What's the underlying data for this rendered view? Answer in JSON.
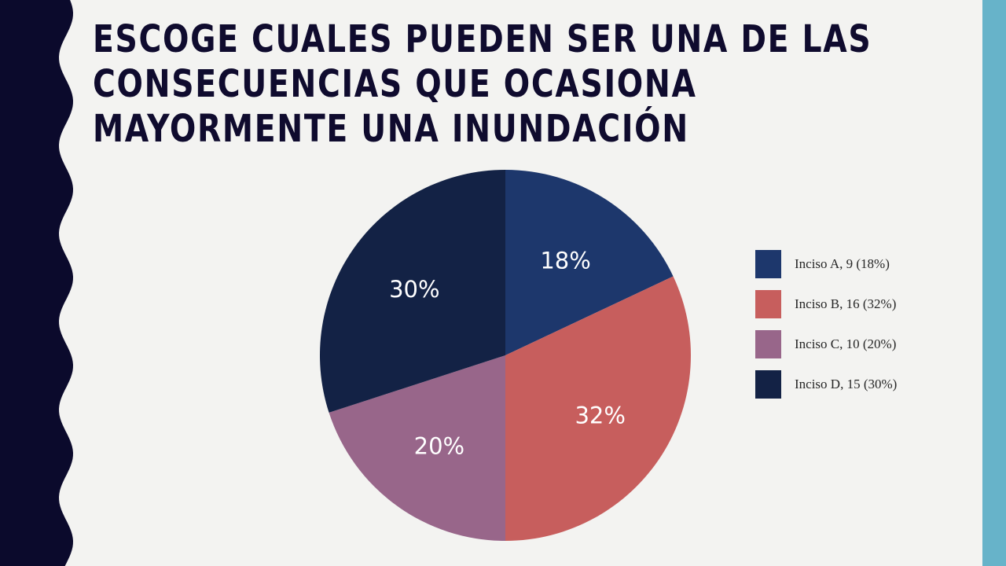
{
  "title_lines": [
    "ESCOGE CUALES PUEDEN SER UNA DE LAS",
    "CONSECUENCIAS QUE OCASIONA",
    "MAYORMENTE UNA INUNDACIÓN"
  ],
  "theme": {
    "background": "#f3f3f1",
    "left_band": "#0b0a2c",
    "right_band": "#67b3c9",
    "title_color": "#0f0b2e"
  },
  "chart_data": {
    "type": "pie",
    "title": "",
    "legend_position": "right",
    "slices": [
      {
        "category": "Inciso A",
        "value": 9,
        "percent_label": "18%",
        "legend": "Inciso A, 9 (18%)",
        "color": "#1d376c"
      },
      {
        "category": "Inciso B",
        "value": 16,
        "percent_label": "32%",
        "legend": "Inciso B, 16 (32%)",
        "color": "#c75e5d"
      },
      {
        "category": "Inciso C",
        "value": 10,
        "percent_label": "20%",
        "legend": "Inciso C, 10 (20%)",
        "color": "#98668a"
      },
      {
        "category": "Inciso D",
        "value": 15,
        "percent_label": "30%",
        "legend": "Inciso D, 15 (30%)",
        "color": "#132245"
      }
    ]
  }
}
